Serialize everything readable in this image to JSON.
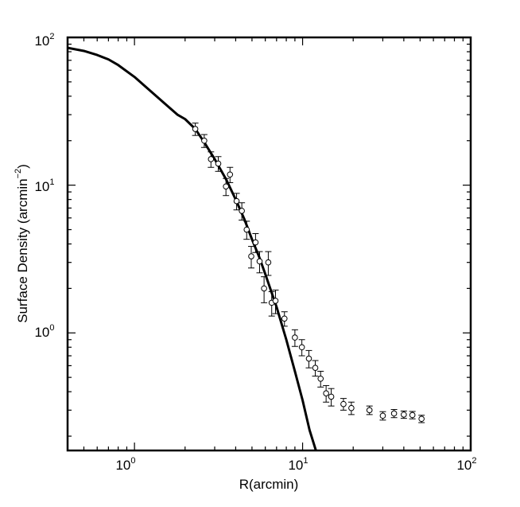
{
  "chart_data": {
    "type": "scatter",
    "xlabel": "R(arcmin)",
    "ylabel_main": "Surface Density (arcmin",
    "ylabel_exp": "−2",
    "ylabel_close": ")",
    "xscale": "log",
    "yscale": "log",
    "xlim": [
      0.4,
      100
    ],
    "ylim": [
      0.16,
      100
    ],
    "grid": false,
    "x_ticks": [
      {
        "base": "10",
        "exp": "0",
        "value": 1
      },
      {
        "base": "10",
        "exp": "1",
        "value": 10
      },
      {
        "base": "10",
        "exp": "2",
        "value": 100
      }
    ],
    "y_ticks": [
      {
        "base": "10",
        "exp": "0",
        "value": 1
      },
      {
        "base": "10",
        "exp": "1",
        "value": 10
      },
      {
        "base": "10",
        "exp": "2",
        "value": 100
      }
    ],
    "series": [
      {
        "kind": "points_with_errorbars",
        "marker": "open-circle",
        "points": [
          {
            "x": 2.3,
            "y": 24,
            "err": 2.3
          },
          {
            "x": 2.6,
            "y": 20,
            "err": 2.0
          },
          {
            "x": 2.85,
            "y": 15,
            "err": 1.8
          },
          {
            "x": 3.15,
            "y": 14,
            "err": 1.6
          },
          {
            "x": 3.5,
            "y": 9.8,
            "err": 1.3
          },
          {
            "x": 3.7,
            "y": 11.8,
            "err": 1.4
          },
          {
            "x": 4.05,
            "y": 7.8,
            "err": 1.0
          },
          {
            "x": 4.35,
            "y": 6.7,
            "err": 0.9
          },
          {
            "x": 4.65,
            "y": 5.0,
            "err": 0.7
          },
          {
            "x": 4.95,
            "y": 3.3,
            "err": 0.55
          },
          {
            "x": 5.25,
            "y": 4.1,
            "err": 0.6
          },
          {
            "x": 5.55,
            "y": 3.05,
            "err": 0.5
          },
          {
            "x": 5.9,
            "y": 2.0,
            "err": 0.4
          },
          {
            "x": 6.25,
            "y": 3.0,
            "err": 0.55
          },
          {
            "x": 6.55,
            "y": 1.6,
            "err": 0.3
          },
          {
            "x": 6.9,
            "y": 1.65,
            "err": 0.3
          },
          {
            "x": 7.8,
            "y": 1.25,
            "err": 0.14
          },
          {
            "x": 9.0,
            "y": 0.93,
            "err": 0.12
          },
          {
            "x": 9.9,
            "y": 0.8,
            "err": 0.1
          },
          {
            "x": 10.9,
            "y": 0.67,
            "err": 0.09
          },
          {
            "x": 11.9,
            "y": 0.58,
            "err": 0.07
          },
          {
            "x": 12.8,
            "y": 0.49,
            "err": 0.06
          },
          {
            "x": 13.8,
            "y": 0.39,
            "err": 0.05
          },
          {
            "x": 14.8,
            "y": 0.37,
            "err": 0.05
          },
          {
            "x": 17.5,
            "y": 0.33,
            "err": 0.03
          },
          {
            "x": 19.5,
            "y": 0.31,
            "err": 0.03
          },
          {
            "x": 25,
            "y": 0.3,
            "err": 0.02
          },
          {
            "x": 30,
            "y": 0.275,
            "err": 0.018
          },
          {
            "x": 35,
            "y": 0.285,
            "err": 0.018
          },
          {
            "x": 40,
            "y": 0.28,
            "err": 0.016
          },
          {
            "x": 45,
            "y": 0.278,
            "err": 0.016
          },
          {
            "x": 51,
            "y": 0.262,
            "err": 0.015
          }
        ]
      },
      {
        "kind": "curve",
        "style": "solid-black-thick",
        "points": [
          {
            "x": 0.4,
            "y": 85
          },
          {
            "x": 0.5,
            "y": 81
          },
          {
            "x": 0.6,
            "y": 76
          },
          {
            "x": 0.7,
            "y": 71
          },
          {
            "x": 0.8,
            "y": 65
          },
          {
            "x": 1.0,
            "y": 54
          },
          {
            "x": 1.2,
            "y": 45
          },
          {
            "x": 1.5,
            "y": 36
          },
          {
            "x": 1.8,
            "y": 30
          },
          {
            "x": 2.0,
            "y": 28
          },
          {
            "x": 2.3,
            "y": 24
          },
          {
            "x": 2.6,
            "y": 19.5
          },
          {
            "x": 3.0,
            "y": 15
          },
          {
            "x": 3.5,
            "y": 11
          },
          {
            "x": 4.0,
            "y": 8
          },
          {
            "x": 4.5,
            "y": 5.9
          },
          {
            "x": 5.0,
            "y": 4.3
          },
          {
            "x": 5.5,
            "y": 3.3
          },
          {
            "x": 6.0,
            "y": 2.5
          },
          {
            "x": 7.0,
            "y": 1.5
          },
          {
            "x": 8.0,
            "y": 0.9
          },
          {
            "x": 9.0,
            "y": 0.55
          },
          {
            "x": 10.0,
            "y": 0.35
          },
          {
            "x": 11.0,
            "y": 0.22
          },
          {
            "x": 12.0,
            "y": 0.16
          }
        ]
      }
    ]
  }
}
